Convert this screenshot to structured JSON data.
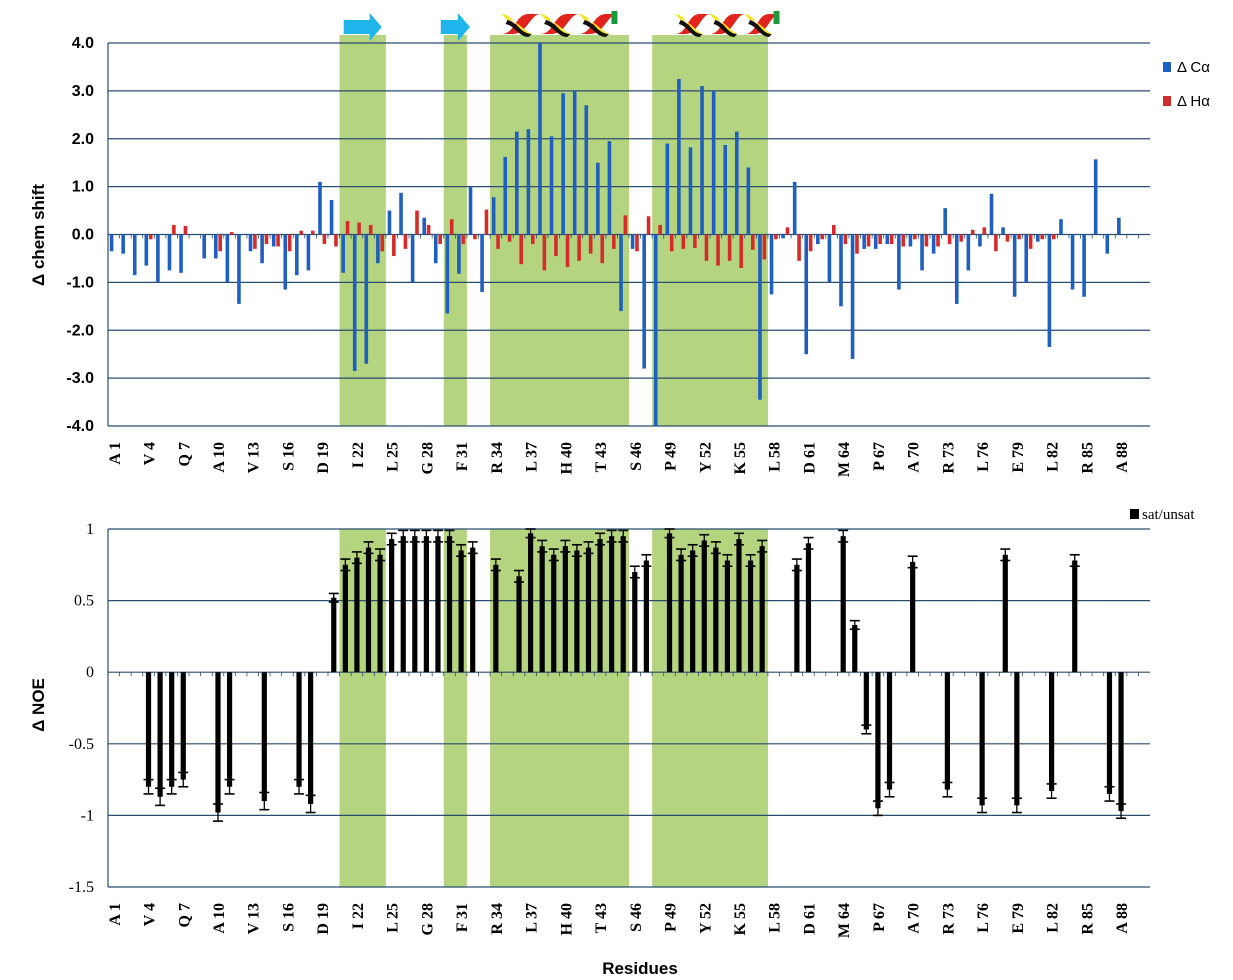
{
  "chart_data": [
    {
      "type": "bar",
      "ylabel": "Δ chem shift",
      "ylim": [
        -4.0,
        4.0
      ],
      "yticks": [
        "4.0",
        "3.0",
        "2.0",
        "1.0",
        "0.0",
        "-1.0",
        "-2.0",
        "-3.0",
        "-4.0"
      ],
      "grid": true,
      "legend_position": "top-right",
      "residues": [
        1,
        90
      ],
      "tick_labels": [
        "A 1",
        "V 4",
        "Q 7",
        "A 10",
        "V 13",
        "S 16",
        "D 19",
        "I 22",
        "L 25",
        "G 28",
        "F 31",
        "R 34",
        "L 37",
        "H 40",
        "T 43",
        "S 46",
        "P 49",
        "Y 52",
        "K 55",
        "L 58",
        "D 61",
        "M 64",
        "P 67",
        "A 70",
        "R 73",
        "L 76",
        "E 79",
        "L 82",
        "R 85",
        "A 88"
      ],
      "tick_residues": [
        1,
        4,
        7,
        10,
        13,
        16,
        19,
        22,
        25,
        28,
        31,
        34,
        37,
        40,
        43,
        46,
        49,
        52,
        55,
        58,
        61,
        64,
        67,
        70,
        73,
        76,
        79,
        82,
        85,
        88
      ],
      "highlight_regions": [
        [
          21,
          24
        ],
        [
          30,
          31
        ],
        [
          34,
          45
        ],
        [
          48,
          57
        ]
      ],
      "secondary_structure": [
        {
          "kind": "strand-icon",
          "start": 21,
          "end": 24
        },
        {
          "kind": "strand-icon",
          "start": 30,
          "end": 31
        },
        {
          "kind": "helix-icon",
          "start": 35,
          "end": 44
        },
        {
          "kind": "helix-icon",
          "start": 50,
          "end": 58
        }
      ],
      "series": [
        {
          "name": "Δ Cα",
          "color": "#1f5fc0",
          "values": [
            -0.35,
            -0.4,
            -0.85,
            -0.65,
            -1.0,
            -0.75,
            -0.8,
            null,
            -0.5,
            -0.5,
            -1.0,
            -1.45,
            -0.35,
            -0.6,
            -0.25,
            -1.15,
            -0.85,
            -0.75,
            1.1,
            0.72,
            -0.8,
            -2.85,
            -2.7,
            -0.6,
            0.5,
            0.87,
            -1.0,
            0.35,
            -0.6,
            -1.65,
            -0.82,
            1.0,
            -1.2,
            0.78,
            1.62,
            2.15,
            2.2,
            4.0,
            2.05,
            2.95,
            3.0,
            2.7,
            1.5,
            1.95,
            -1.6,
            -0.3,
            -2.8,
            -4.0,
            1.9,
            3.25,
            1.82,
            3.1,
            3.0,
            1.87,
            2.15,
            1.4,
            -3.45,
            -1.25,
            -0.08,
            1.1,
            -2.5,
            -0.2,
            -1.0,
            -1.5,
            -2.6,
            -0.3,
            -0.3,
            -0.2,
            -1.15,
            -0.25,
            -0.75,
            -0.4,
            0.55,
            -1.45,
            -0.75,
            -0.25,
            0.85,
            0.15,
            -1.3,
            -1.0,
            -0.15,
            -2.35,
            0.32,
            -1.15,
            -1.3,
            1.57,
            -0.4,
            0.35,
            null,
            null
          ]
        },
        {
          "name": "Δ Hα",
          "color": "#d62b2b",
          "values": [
            null,
            null,
            null,
            -0.1,
            null,
            0.2,
            0.18,
            null,
            null,
            -0.35,
            0.05,
            null,
            -0.3,
            -0.2,
            -0.25,
            -0.35,
            0.08,
            0.08,
            -0.2,
            -0.25,
            0.28,
            0.25,
            0.2,
            -0.35,
            -0.45,
            -0.3,
            0.5,
            0.2,
            -0.2,
            0.32,
            -0.2,
            -0.1,
            0.52,
            -0.3,
            -0.15,
            -0.62,
            -0.2,
            -0.75,
            -0.45,
            -0.68,
            -0.55,
            -0.4,
            -0.6,
            -0.3,
            0.4,
            -0.35,
            0.38,
            0.2,
            -0.35,
            -0.3,
            -0.28,
            -0.55,
            -0.65,
            -0.55,
            -0.7,
            -0.32,
            -0.52,
            -0.1,
            0.15,
            -0.55,
            -0.35,
            -0.1,
            0.2,
            -0.2,
            -0.4,
            -0.25,
            -0.2,
            -0.2,
            -0.25,
            -0.1,
            -0.25,
            -0.25,
            -0.2,
            -0.15,
            0.1,
            0.15,
            -0.35,
            -0.15,
            -0.1,
            -0.3,
            -0.1,
            -0.1,
            null,
            null,
            null,
            null,
            null,
            null,
            null,
            null
          ]
        }
      ]
    },
    {
      "type": "bar",
      "ylabel": "Δ NOE",
      "xlabel": "Residues",
      "ylim": [
        -1.5,
        1.0
      ],
      "yticks": [
        "1",
        "0.5",
        "0",
        "-0.5",
        "-1",
        "-1.5"
      ],
      "grid": true,
      "legend_position": "top-right",
      "residues": [
        1,
        90
      ],
      "tick_labels": [
        "A 1",
        "V 4",
        "Q 7",
        "A 10",
        "V 13",
        "S 16",
        "D 19",
        "I 22",
        "L 25",
        "G 28",
        "F 31",
        "R 34",
        "L 37",
        "H 40",
        "T 43",
        "S 46",
        "P 49",
        "Y 52",
        "K 55",
        "L 58",
        "D 61",
        "M 64",
        "P 67",
        "A 70",
        "R 73",
        "L 76",
        "E 79",
        "L 82",
        "R 85",
        "A 88"
      ],
      "tick_residues": [
        1,
        4,
        7,
        10,
        13,
        16,
        19,
        22,
        25,
        28,
        31,
        34,
        37,
        40,
        43,
        46,
        49,
        52,
        55,
        58,
        61,
        64,
        67,
        70,
        73,
        76,
        79,
        82,
        85,
        88
      ],
      "highlight_regions": [
        [
          21,
          24
        ],
        [
          30,
          31
        ],
        [
          34,
          45
        ],
        [
          48,
          57
        ]
      ],
      "series": [
        {
          "name": "sat/unsat",
          "color": "#000000",
          "values": [
            null,
            null,
            null,
            -0.8,
            -0.87,
            -0.8,
            -0.75,
            null,
            null,
            -0.98,
            -0.8,
            null,
            null,
            -0.9,
            null,
            null,
            -0.8,
            -0.92,
            null,
            0.52,
            0.75,
            0.8,
            0.87,
            0.82,
            0.93,
            0.95,
            0.95,
            0.95,
            0.95,
            0.95,
            0.85,
            0.87,
            null,
            0.75,
            null,
            0.67,
            0.97,
            0.88,
            0.82,
            0.88,
            0.85,
            0.87,
            0.93,
            0.95,
            0.95,
            0.7,
            0.78,
            null,
            0.97,
            0.82,
            0.85,
            0.92,
            0.87,
            0.78,
            0.93,
            0.78,
            0.88,
            null,
            null,
            0.75,
            0.9,
            null,
            null,
            0.95,
            0.33,
            -0.4,
            -0.95,
            -0.82,
            null,
            0.77,
            null,
            null,
            -0.82,
            null,
            null,
            -0.93,
            null,
            0.82,
            -0.93,
            null,
            null,
            -0.83,
            null,
            0.78,
            null,
            null,
            -0.85,
            -0.97,
            null,
            null
          ],
          "errors": [
            null,
            null,
            null,
            0.05,
            0.06,
            0.05,
            0.05,
            null,
            null,
            0.06,
            0.05,
            null,
            null,
            0.06,
            null,
            null,
            0.05,
            0.06,
            null,
            0.03,
            0.04,
            0.04,
            0.04,
            0.04,
            0.04,
            0.04,
            0.04,
            0.04,
            0.04,
            0.04,
            0.04,
            0.04,
            null,
            0.04,
            null,
            0.04,
            0.03,
            0.04,
            0.04,
            0.04,
            0.04,
            0.04,
            0.04,
            0.04,
            0.04,
            0.04,
            0.04,
            null,
            0.03,
            0.04,
            0.04,
            0.04,
            0.04,
            0.04,
            0.04,
            0.04,
            0.04,
            null,
            null,
            0.04,
            0.04,
            null,
            null,
            0.04,
            0.03,
            0.03,
            0.05,
            0.05,
            null,
            0.04,
            null,
            null,
            0.05,
            null,
            null,
            0.05,
            null,
            0.04,
            0.05,
            null,
            null,
            0.05,
            null,
            0.04,
            null,
            null,
            0.05,
            0.05,
            null,
            null
          ]
        }
      ]
    }
  ]
}
